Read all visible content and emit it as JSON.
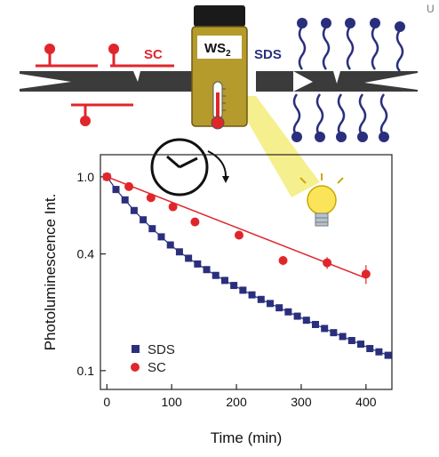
{
  "figure": {
    "vial_label_main": "WS",
    "vial_label_sub": "2",
    "sc_label": "SC",
    "sds_label": "SDS",
    "corner_mark": "U",
    "colors": {
      "sc": "#e0262b",
      "sds": "#2a2f7d",
      "rod": "#3b3b3b",
      "vial_liquid": "#b59a2c",
      "beam": "#f4ec7a",
      "bulb": "#fbe45a"
    },
    "icons": [
      "clock-icon",
      "thermometer-icon",
      "light-bulb-icon"
    ]
  },
  "chart_data": {
    "type": "scatter",
    "xlabel": "Time (min)",
    "ylabel": "Photoluminescence Int.",
    "xlim": [
      -10,
      440
    ],
    "ylim": [
      0.08,
      1.3
    ],
    "yscale": "log",
    "xticks": [
      0,
      100,
      200,
      300,
      400
    ],
    "yticks": [
      1.0,
      0.4,
      0.1
    ],
    "ytick_labels": [
      "1.0",
      "0.4",
      "0.1"
    ],
    "grid": false,
    "legend_position": "bottom-left",
    "series": [
      {
        "name": "SDS",
        "marker": "square",
        "color": "#2a2f7d",
        "x": [
          0,
          14,
          28,
          42,
          56,
          70,
          84,
          98,
          112,
          126,
          140,
          154,
          168,
          182,
          196,
          210,
          224,
          238,
          252,
          266,
          280,
          294,
          308,
          322,
          336,
          350,
          364,
          378,
          392,
          406,
          420,
          434
        ],
        "y": [
          1.0,
          0.86,
          0.76,
          0.67,
          0.6,
          0.54,
          0.49,
          0.445,
          0.41,
          0.38,
          0.355,
          0.332,
          0.31,
          0.292,
          0.275,
          0.26,
          0.246,
          0.233,
          0.222,
          0.211,
          0.201,
          0.191,
          0.182,
          0.173,
          0.165,
          0.157,
          0.15,
          0.143,
          0.137,
          0.13,
          0.125,
          0.12
        ]
      },
      {
        "name": "SC",
        "marker": "circle",
        "color": "#e0262b",
        "x": [
          0,
          34,
          68,
          102,
          136,
          204,
          272,
          340,
          400
        ],
        "y": [
          1.0,
          0.89,
          0.78,
          0.7,
          0.585,
          0.5,
          0.37,
          0.36,
          0.315
        ],
        "error": [
          0.03,
          0.02,
          0.02,
          0.02,
          0.02,
          0.02,
          0.02,
          0.025,
          0.035
        ]
      }
    ],
    "fits": [
      {
        "series": "SDS",
        "x": [
          0,
          440
        ],
        "type": "curve",
        "color": "#2a2f7d"
      },
      {
        "series": "SC",
        "x": [
          0,
          400
        ],
        "y": [
          1.0,
          0.3
        ],
        "type": "line",
        "color": "#e0262b"
      }
    ]
  }
}
